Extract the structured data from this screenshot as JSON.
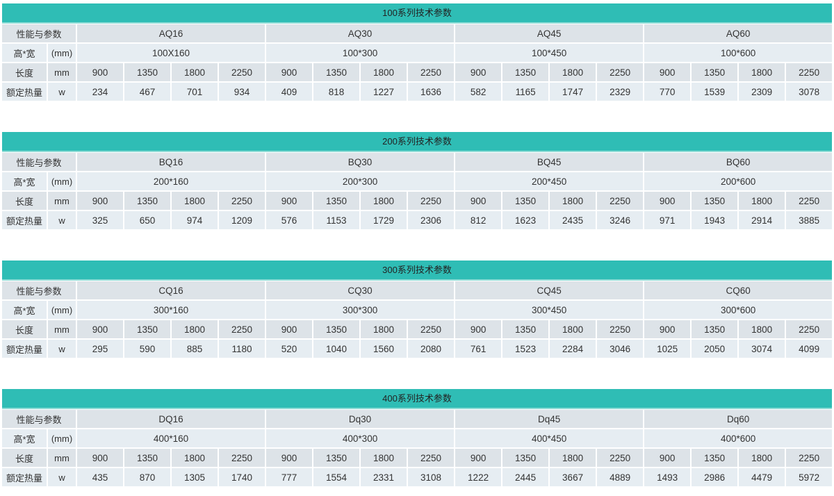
{
  "row_labels": {
    "params": "性能与参数",
    "hw": "高*宽",
    "hw_unit": "(mm)",
    "length": "长度",
    "length_unit": "mm",
    "heat": "额定热量",
    "heat_unit": "w"
  },
  "accent_color": "#2fbdb5",
  "series": [
    {
      "title": "100系列技术参数",
      "models": [
        "AQ16",
        "AQ30",
        "AQ45",
        "AQ60"
      ],
      "sizes": [
        "100X160",
        "100*300",
        "100*450",
        "100*600"
      ],
      "lengths": [
        "900",
        "1350",
        "1800",
        "2250"
      ],
      "heat": [
        [
          "234",
          "467",
          "701",
          "934"
        ],
        [
          "409",
          "818",
          "1227",
          "1636"
        ],
        [
          "582",
          "1165",
          "1747",
          "2329"
        ],
        [
          "770",
          "1539",
          "2309",
          "3078"
        ]
      ]
    },
    {
      "title": "200系列技术参数",
      "models": [
        "BQ16",
        "BQ30",
        "BQ45",
        "BQ60"
      ],
      "sizes": [
        "200*160",
        "200*300",
        "200*450",
        "200*600"
      ],
      "lengths": [
        "900",
        "1350",
        "1800",
        "2250"
      ],
      "heat": [
        [
          "325",
          "650",
          "974",
          "1209"
        ],
        [
          "576",
          "1153",
          "1729",
          "2306"
        ],
        [
          "812",
          "1623",
          "2435",
          "3246"
        ],
        [
          "971",
          "1943",
          "2914",
          "3885"
        ]
      ]
    },
    {
      "title": "300系列技术参数",
      "models": [
        "CQ16",
        "CQ30",
        "CQ45",
        "CQ60"
      ],
      "sizes": [
        "300*160",
        "300*300",
        "300*450",
        "300*600"
      ],
      "lengths": [
        "900",
        "1350",
        "1800",
        "2250"
      ],
      "heat": [
        [
          "295",
          "590",
          "885",
          "1180"
        ],
        [
          "520",
          "1040",
          "1560",
          "2080"
        ],
        [
          "761",
          "1523",
          "2284",
          "3046"
        ],
        [
          "1025",
          "2050",
          "3074",
          "4099"
        ]
      ]
    },
    {
      "title": "400系列技术参数",
      "models": [
        "DQ16",
        "Dq30",
        "Dq45",
        "Dq60"
      ],
      "sizes": [
        "400*160",
        "400*300",
        "400*450",
        "400*600"
      ],
      "lengths": [
        "900",
        "1350",
        "1800",
        "2250"
      ],
      "heat": [
        [
          "435",
          "870",
          "1305",
          "1740"
        ],
        [
          "777",
          "1554",
          "2331",
          "3108"
        ],
        [
          "1222",
          "2445",
          "3667",
          "4889"
        ],
        [
          "1493",
          "2986",
          "4479",
          "5972"
        ]
      ]
    }
  ]
}
